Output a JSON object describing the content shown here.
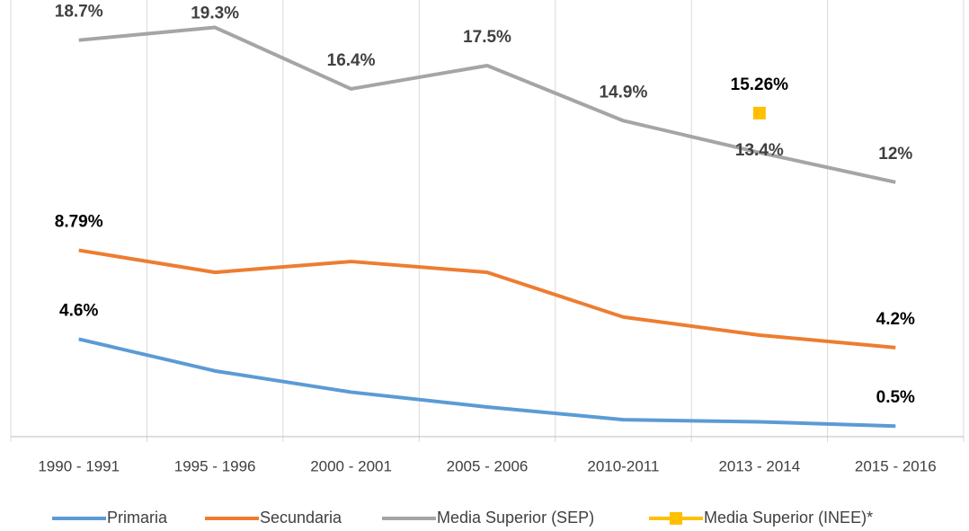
{
  "chart_data": {
    "type": "line",
    "categories": [
      "1990 - 1991",
      "1995 - 1996",
      "2000 - 2001",
      "2005 - 2006",
      "2010-2011",
      "2013 - 2014",
      "2015 - 2016"
    ],
    "ylim": [
      0,
      20
    ],
    "grid": true,
    "series": [
      {
        "name": "Primaria",
        "color": "#5b9bd5",
        "values": [
          4.6,
          3.1,
          2.1,
          1.4,
          0.8,
          0.7,
          0.5
        ],
        "value_labels": [
          "4.6%",
          null,
          null,
          null,
          null,
          null,
          "0.5%"
        ]
      },
      {
        "name": "Secundaria",
        "color": "#ed7d31",
        "values": [
          8.79,
          7.75,
          8.26,
          7.75,
          5.64,
          4.79,
          4.2
        ],
        "value_labels": [
          "8.79%",
          null,
          null,
          null,
          null,
          null,
          "4.2%"
        ]
      },
      {
        "name": "Media Superior (SEP)",
        "color": "#a5a5a5",
        "values": [
          18.7,
          19.3,
          16.4,
          17.5,
          14.9,
          13.4,
          12
        ],
        "value_labels": [
          "18.7%",
          "19.3%",
          "16.4%",
          "17.5%",
          "14.9%",
          "13.4%",
          "12%"
        ]
      },
      {
        "name": "Media Superior (INEE)*",
        "color": "#ffc000",
        "values": [
          null,
          null,
          null,
          null,
          null,
          15.26,
          null
        ],
        "value_labels": [
          null,
          null,
          null,
          null,
          null,
          "15.26%",
          null
        ]
      }
    ]
  }
}
